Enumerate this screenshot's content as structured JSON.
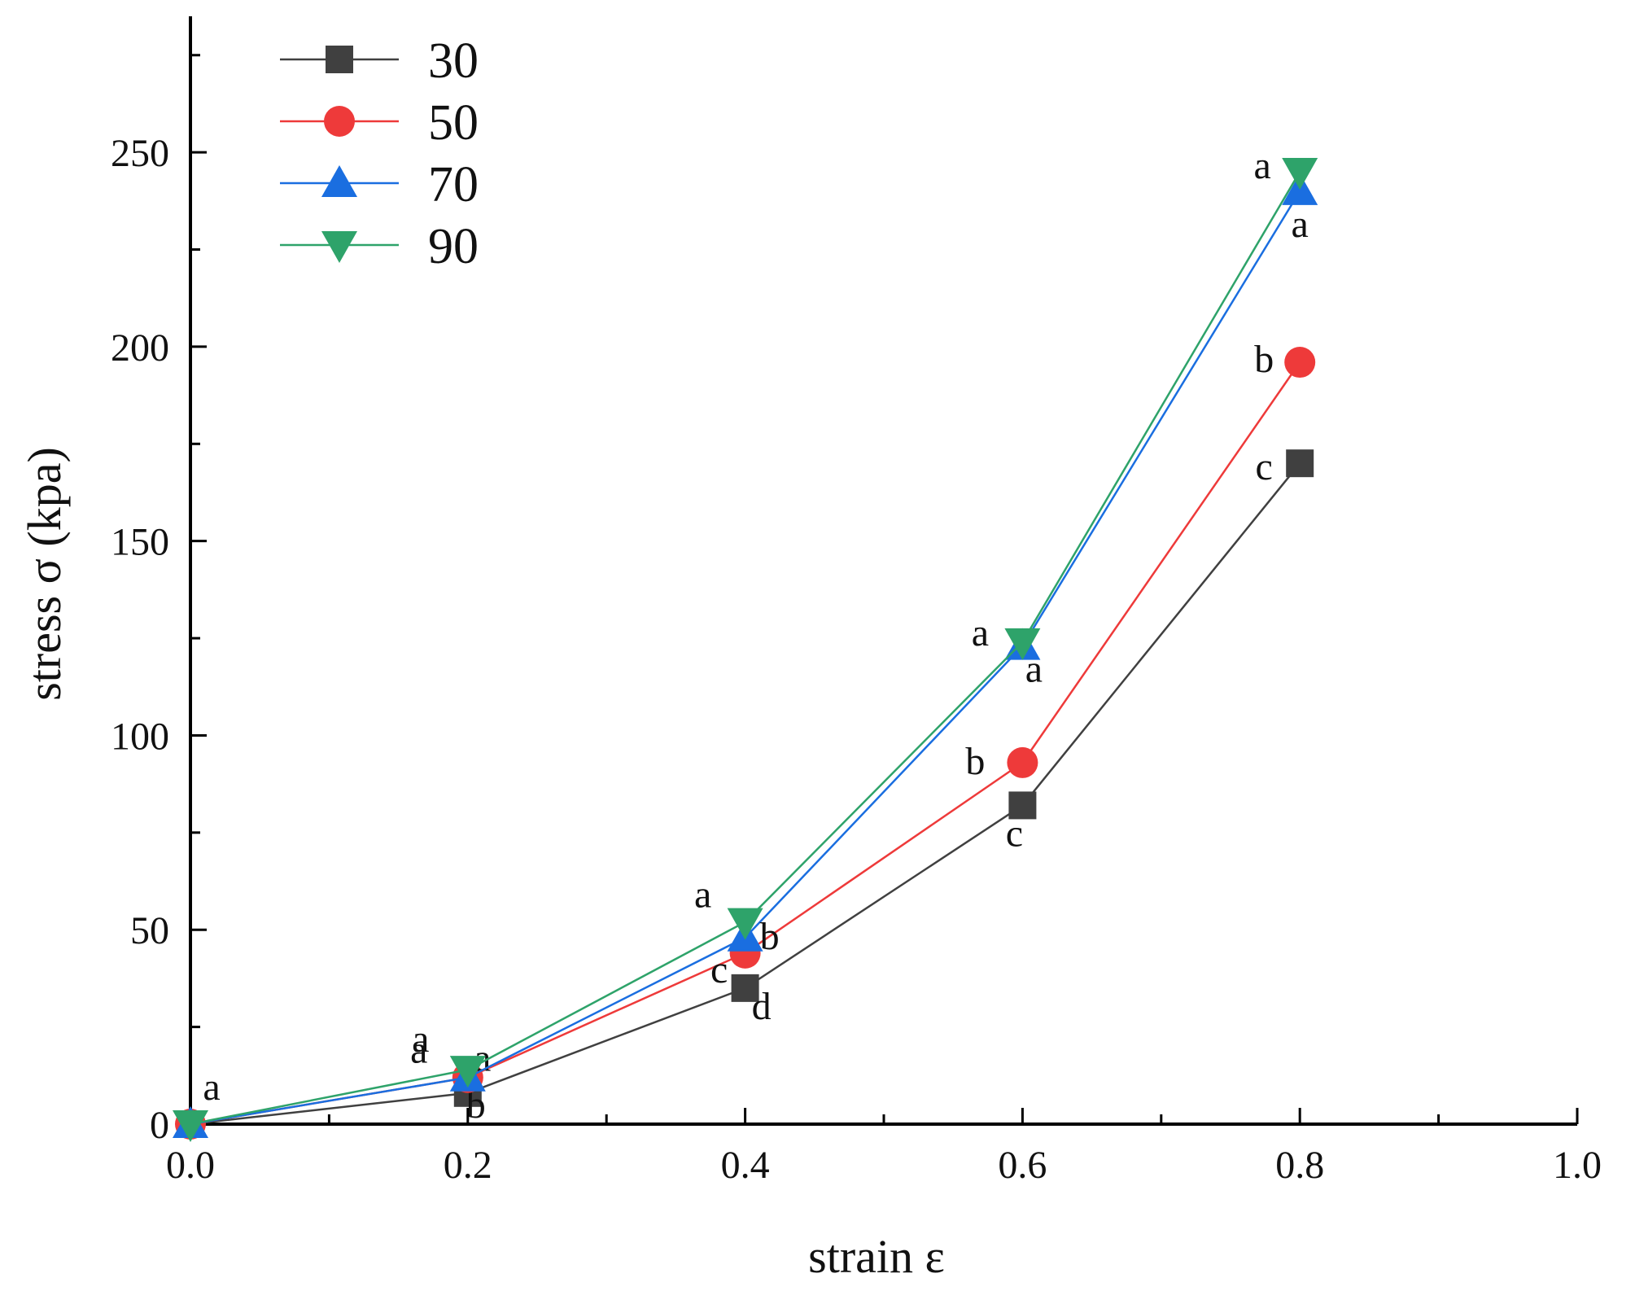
{
  "chart_data": {
    "type": "line",
    "title": "",
    "xlabel": "strain ε",
    "ylabel": "stress σ (kpa)",
    "xlim": [
      0.0,
      1.0
    ],
    "ylim": [
      0,
      285
    ],
    "x_ticks": [
      0.0,
      0.2,
      0.4,
      0.6,
      0.8,
      1.0
    ],
    "x_tick_labels": [
      "0.0",
      "0.2",
      "0.4",
      "0.6",
      "0.8",
      "1.0"
    ],
    "y_ticks": [
      0,
      50,
      100,
      150,
      200,
      250
    ],
    "y_tick_labels": [
      "0",
      "50",
      "100",
      "150",
      "200",
      "250"
    ],
    "grid": false,
    "legend_position": "top-left",
    "x": [
      0.0,
      0.2,
      0.4,
      0.6,
      0.8
    ],
    "series": [
      {
        "name": "30",
        "color": "#404040",
        "marker": "square",
        "values": [
          0,
          8,
          35,
          82,
          170
        ],
        "letters": [
          "",
          "b",
          "d",
          "c",
          "c"
        ]
      },
      {
        "name": "50",
        "color": "#ee3a3a",
        "marker": "circle",
        "values": [
          0,
          12,
          44,
          93,
          196
        ],
        "letters": [
          "",
          "a",
          "c",
          "b",
          "b"
        ]
      },
      {
        "name": "70",
        "color": "#1a6ee0",
        "marker": "triangle-up",
        "values": [
          0,
          12,
          48,
          123,
          240
        ],
        "letters": [
          "",
          "a",
          "b",
          "a",
          "a"
        ]
      },
      {
        "name": "90",
        "color": "#2ea36a",
        "marker": "triangle-down",
        "values": [
          0,
          14,
          52,
          124,
          245
        ],
        "letters": [
          "a",
          "a",
          "a",
          "a",
          "a"
        ]
      }
    ]
  }
}
